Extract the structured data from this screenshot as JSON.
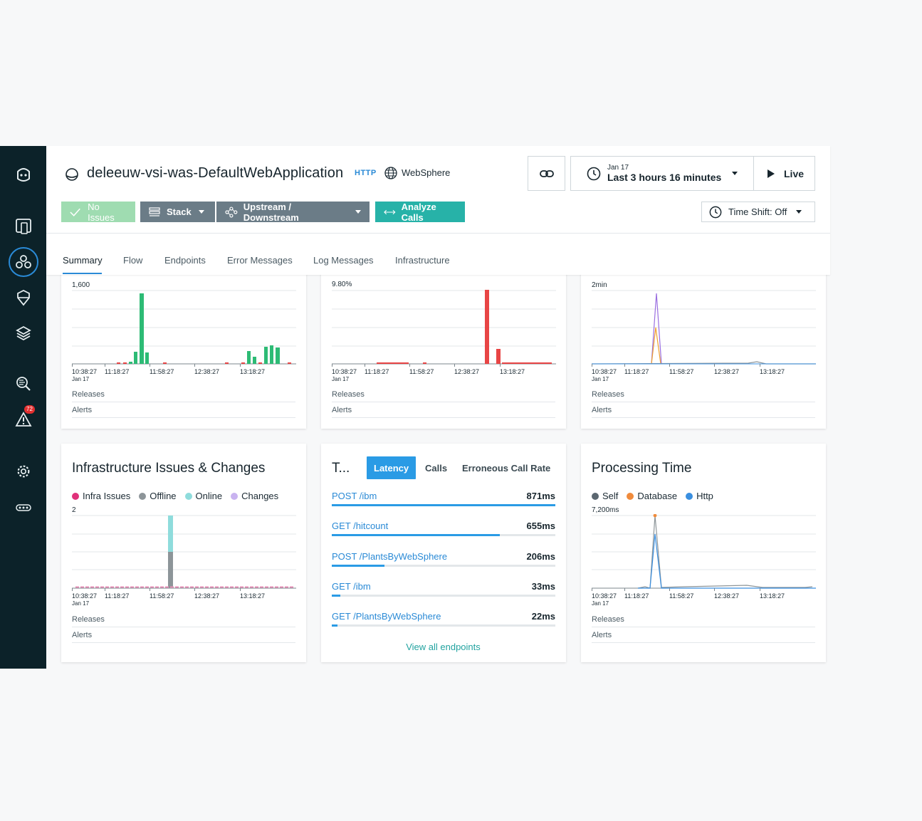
{
  "sidebar": {
    "alerts_badge": "72"
  },
  "header": {
    "title": "deleeuw-vsi-was-DefaultWebApplication",
    "protocol": "HTTP",
    "technology": "WebSphere",
    "time_date": "Jan 17",
    "time_range": "Last 3 hours 16 minutes",
    "live_label": "Live",
    "no_issues_label": "No Issues",
    "stack_label": "Stack",
    "updown_label": "Upstream / Downstream",
    "analyze_label": "Analyze Calls",
    "timeshift_label": "Time Shift: Off"
  },
  "tabs": [
    "Summary",
    "Flow",
    "Endpoints",
    "Error Messages",
    "Log Messages",
    "Infrastructure"
  ],
  "x_ticks": [
    "10:38:27",
    "11:18:27",
    "11:58:27",
    "12:38:27",
    "13:18:27"
  ],
  "x_sub": "Jan 17",
  "releases_label": "Releases",
  "alerts_label": "Alerts",
  "top_charts": {
    "calls": {
      "ymax": "1,600"
    },
    "error_rate": {
      "ymax": "9.80%"
    },
    "latency": {
      "ymax": "2min"
    }
  },
  "infra": {
    "title": "Infrastructure Issues & Changes",
    "legend": [
      "Infra Issues",
      "Offline",
      "Online",
      "Changes"
    ],
    "legend_colors": [
      "#e0317a",
      "#8d9599",
      "#8fdcdc",
      "#c9b3f0"
    ],
    "ymax": "2"
  },
  "endpoints": {
    "title": "T...",
    "tabs": [
      "Latency",
      "Calls",
      "Erroneous Call Rate"
    ],
    "items": [
      {
        "name": "POST /ibm",
        "value": "871ms",
        "fraction": 1.0
      },
      {
        "name": "GET /hitcount",
        "value": "655ms",
        "fraction": 0.752
      },
      {
        "name": "POST /PlantsByWebSphere",
        "value": "206ms",
        "fraction": 0.237
      },
      {
        "name": "GET /ibm",
        "value": "33ms",
        "fraction": 0.038
      },
      {
        "name": "GET /PlantsByWebSphere",
        "value": "22ms",
        "fraction": 0.025
      }
    ],
    "view_all": "View all endpoints"
  },
  "processing": {
    "title": "Processing Time",
    "legend": [
      "Self",
      "Database",
      "Http"
    ],
    "legend_colors": [
      "#5b6770",
      "#f08b3c",
      "#3a8fe0"
    ],
    "ymax": "7,200ms"
  }
}
